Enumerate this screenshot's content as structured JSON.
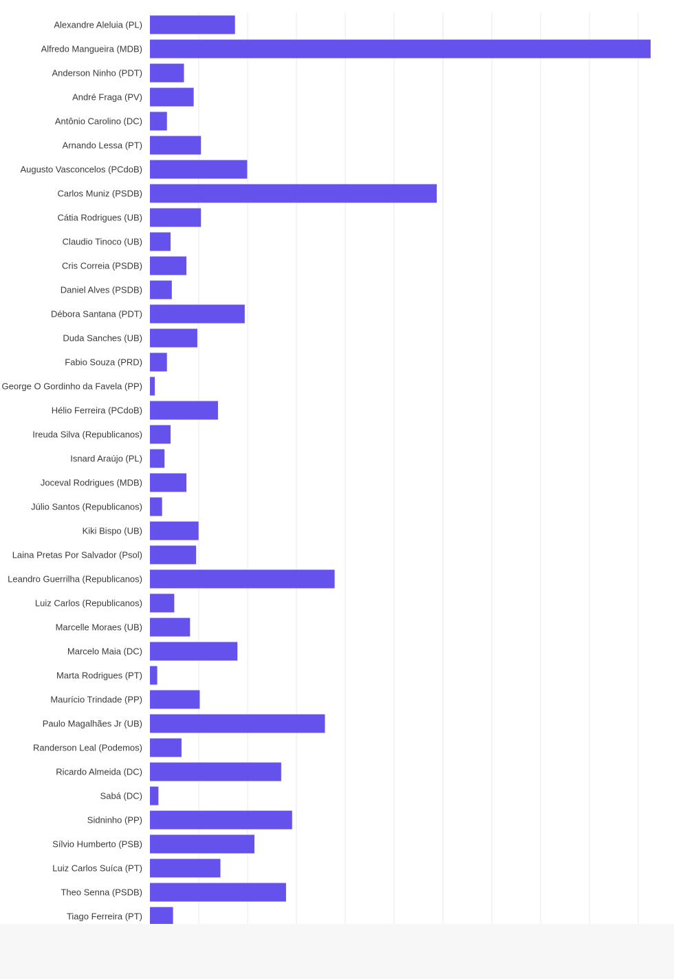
{
  "colors": {
    "bar": "#6552ec",
    "grid": "#e9e9ee",
    "label": "#3a3a3a",
    "footer": "#f7f7f8"
  },
  "chart_data": {
    "type": "bar",
    "orientation": "horizontal",
    "grid": true,
    "title": "",
    "xlabel": "",
    "ylabel": "",
    "xlim": [
      0,
      2.06
    ],
    "categories": [
      "Alexandre Aleluia (PL)",
      "Alfredo Mangueira (MDB)",
      "Anderson Ninho (PDT)",
      "André Fraga (PV)",
      "Antônio Carolino (DC)",
      "Arnando Lessa (PT)",
      "Augusto Vasconcelos (PCdoB)",
      "Carlos Muniz (PSDB)",
      "Cátia Rodrigues (UB)",
      "Claudio Tinoco (UB)",
      "Cris Correia (PSDB)",
      "Daniel Alves (PSDB)",
      "Débora Santana (PDT)",
      "Duda Sanches (UB)",
      "Fabio Souza (PRD)",
      "George O Gordinho da Favela (PP)",
      "Hélio Ferreira (PCdoB)",
      "Ireuda Silva (Republicanos)",
      "Isnard Araújo (PL)",
      "Joceval Rodrigues (MDB)",
      "Júlio Santos (Republicanos)",
      "Kiki Bispo (UB)",
      "Laina Pretas Por Salvador (Psol)",
      "Leandro Guerrilha (Republicanos)",
      "Luiz Carlos (Republicanos)",
      "Marcelle Moraes (UB)",
      "Marcelo Maia (DC)",
      "Marta Rodrigues (PT)",
      "Maurício Trindade (PP)",
      "Paulo Magalhães Jr (UB)",
      "Randerson Leal (Podemos)",
      "Ricardo Almeida (DC)",
      "Sabá (DC)",
      "Sidninho (PP)",
      "Sílvio Humberto (PSB)",
      "Luiz Carlos Suíca (PT)",
      "Theo Senna (PSDB)",
      "Tiago Ferreira (PT)"
    ],
    "values": [
      0.35,
      2.06,
      0.14,
      0.18,
      0.07,
      0.21,
      0.4,
      1.18,
      0.21,
      0.085,
      0.15,
      0.09,
      0.39,
      0.195,
      0.07,
      0.02,
      0.28,
      0.085,
      0.06,
      0.15,
      0.05,
      0.2,
      0.19,
      0.76,
      0.1,
      0.165,
      0.36,
      0.03,
      0.205,
      0.72,
      0.13,
      0.54,
      0.035,
      0.585,
      0.43,
      0.29,
      0.56,
      0.095
    ]
  }
}
